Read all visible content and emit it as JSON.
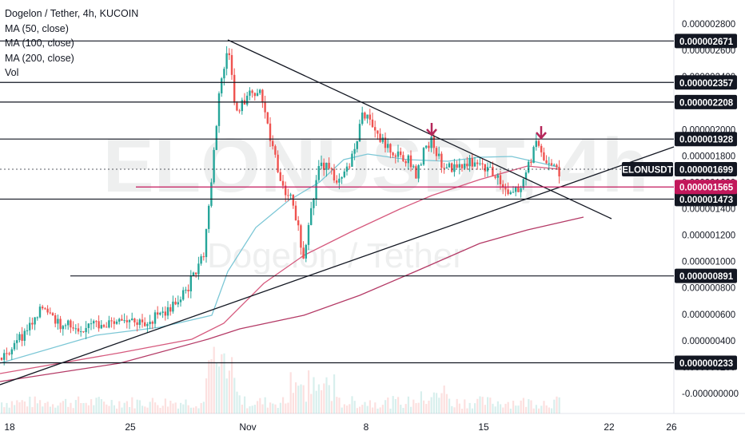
{
  "chart_data": {
    "type": "candlestick",
    "title": "Dogelon / Tether, 4h, KUCOIN",
    "watermark": {
      "symbol": "ELONUSDT, 4h",
      "name": "Dogelon / Tether"
    },
    "indicators": [
      "MA (50, close)",
      "MA (100, close)",
      "MA (200, close)",
      "Vol"
    ],
    "x_ticks": [
      "18",
      "25",
      "Nov",
      "8",
      "15",
      "22",
      "26"
    ],
    "y_ticks": [
      "0.000002800",
      "0.000002600",
      "0.000002400",
      "0.000002200",
      "0.000002000",
      "0.000001800",
      "0.000001600",
      "0.000001400",
      "0.000001200",
      "0.000001000",
      "0.000000800",
      "0.000000600",
      "0.000000400",
      "0.000000200",
      "-0.000000000"
    ],
    "ylim": [
      -5e-08,
      2.9e-06
    ],
    "horizontal_levels": [
      {
        "label": "0.000002671",
        "value": 2.671e-06
      },
      {
        "label": "0.000002357",
        "value": 2.357e-06
      },
      {
        "label": "0.000002208",
        "value": 2.208e-06
      },
      {
        "label": "0.000001928",
        "value": 1.928e-06
      },
      {
        "label": "0.000001473",
        "value": 1.473e-06
      },
      {
        "label": "0.000000891",
        "value": 8.91e-07
      },
      {
        "label": "0.000000233",
        "value": 2.33e-07
      }
    ],
    "current_price": {
      "symbol": "ELONUSDT",
      "label": "0.000001699",
      "value": 1.699e-06
    },
    "highlight_level": {
      "label": "0.000001565",
      "value": 1.565e-06
    },
    "colors": {
      "up": "#26a69a",
      "down": "#ef5350",
      "ma50": "#7cc7d6",
      "ma100": "#d65a7e",
      "ma200": "#b43a66",
      "level_line": "#131722",
      "highlight": "#c2185b",
      "arrow": "#b5275a",
      "label_bg": "#131722",
      "label_text": "#ffffff"
    }
  }
}
